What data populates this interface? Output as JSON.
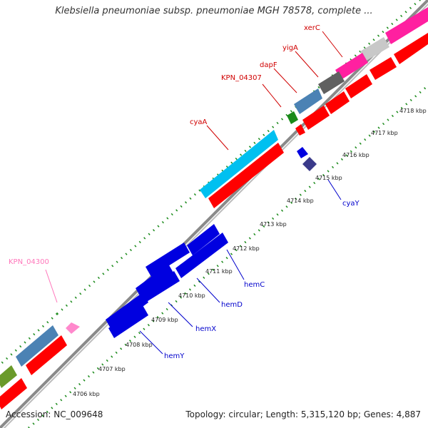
{
  "title": "Klebsiella pneumoniae subsp. pneumoniae MGH 78578, complete ...",
  "footer": {
    "accession": "Accession: NC_009648",
    "summary": "Topology: circular; Length: 5,315,120 bp; Genes: 4,887"
  },
  "scale_labels": [
    "4706 kbp",
    "4707 kbp",
    "4708 kbp",
    "4709 kbp",
    "4710 kbp",
    "4711 kbp",
    "4712 kbp",
    "4713 kbp",
    "4714 kbp",
    "4715 kbp",
    "4716 kbp",
    "4717 kbp",
    "4718 kbp"
  ],
  "gene_labels": {
    "xerC": "xerC",
    "yigA": "yigA",
    "dapF": "dapF",
    "kpn04307": "KPN_04307",
    "cyaA": "cyaA",
    "cyaY": "cyaY",
    "kpn04300": "KPN_04300",
    "hemC": "hemC",
    "hemD": "hemD",
    "hemX": "hemX",
    "hemY": "hemY"
  },
  "colors": {
    "cds_red": "#ff0000",
    "dark_blue": "#0000e0",
    "light_blue": "#00c0f0",
    "steel_blue": "#4b82b4",
    "magenta": "#ff20a0",
    "gray": "#606060",
    "light_gray": "#c8c8c8",
    "green": "#1a8a1a",
    "olive": "#6a9a2a",
    "pink": "#ff88cc",
    "tick_green": "#1a8a1a",
    "label_red": "#d00000",
    "label_blue": "#0000cc",
    "label_pink": "#ff77bb"
  }
}
